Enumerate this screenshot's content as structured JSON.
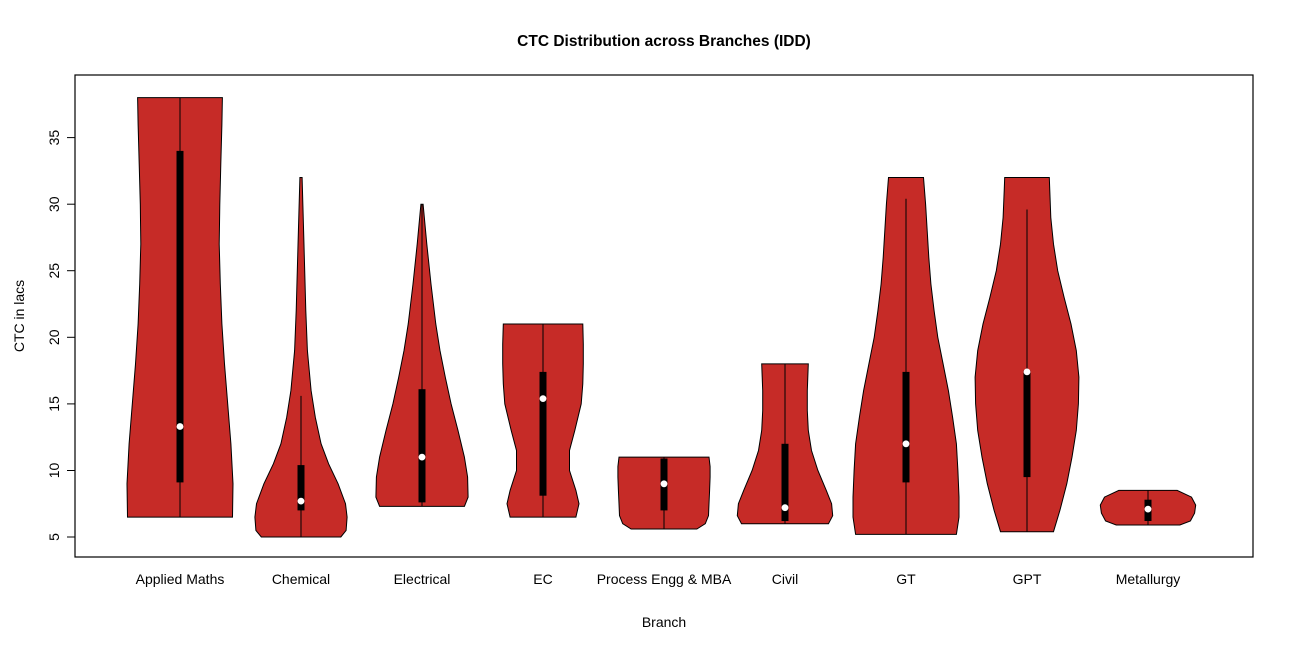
{
  "chart_data": {
    "type": "violin",
    "title": "CTC Distribution across Branches (IDD)",
    "xlabel": "Branch",
    "ylabel": "CTC in lacs",
    "ylim": [
      3.5,
      39.7
    ],
    "yticks": [
      5,
      10,
      15,
      20,
      25,
      30,
      35
    ],
    "grid": false,
    "legend": "none",
    "fill_color": "#C62B27",
    "outline_color": "#000000",
    "box_color": "#000000",
    "median_dot_color": "#ffffff",
    "categories": [
      "Applied Maths",
      "Chemical",
      "Electrical",
      "EC",
      "Process Engg & MBA",
      "Civil",
      "GT",
      "GPT",
      "Metallurgy"
    ],
    "violins": [
      {
        "name": "Applied Maths",
        "median": 13.3,
        "q1": 9.1,
        "q3": 34.0,
        "whisker": [
          6.5,
          38.0
        ],
        "density": [
          [
            6.5,
            0.99
          ],
          [
            9,
            1.0
          ],
          [
            12,
            0.96
          ],
          [
            15,
            0.9
          ],
          [
            18,
            0.84
          ],
          [
            21,
            0.79
          ],
          [
            24,
            0.76
          ],
          [
            27,
            0.74
          ],
          [
            30,
            0.75
          ],
          [
            33,
            0.77
          ],
          [
            36,
            0.79
          ],
          [
            38,
            0.8
          ]
        ]
      },
      {
        "name": "Chemical",
        "median": 7.7,
        "q1": 7.0,
        "q3": 10.4,
        "whisker": [
          5.0,
          15.6
        ],
        "density": [
          [
            5.0,
            0.75
          ],
          [
            5.5,
            0.85
          ],
          [
            6.5,
            0.87
          ],
          [
            7.5,
            0.84
          ],
          [
            9,
            0.7
          ],
          [
            10.5,
            0.52
          ],
          [
            12,
            0.38
          ],
          [
            14,
            0.27
          ],
          [
            16,
            0.19
          ],
          [
            19,
            0.12
          ],
          [
            22,
            0.09
          ],
          [
            25,
            0.07
          ],
          [
            28,
            0.05
          ],
          [
            32,
            0.02
          ]
        ]
      },
      {
        "name": "Electrical",
        "median": 11.0,
        "q1": 7.6,
        "q3": 16.1,
        "whisker": [
          7.3,
          30.0
        ],
        "density": [
          [
            7.3,
            0.8
          ],
          [
            8,
            0.87
          ],
          [
            9.5,
            0.86
          ],
          [
            11,
            0.8
          ],
          [
            13,
            0.68
          ],
          [
            15,
            0.55
          ],
          [
            17,
            0.44
          ],
          [
            19,
            0.34
          ],
          [
            21,
            0.26
          ],
          [
            24,
            0.17
          ],
          [
            27,
            0.09
          ],
          [
            30,
            0.02
          ]
        ]
      },
      {
        "name": "EC",
        "median": 15.4,
        "q1": 8.1,
        "q3": 17.4,
        "whisker": [
          6.5,
          21.0
        ],
        "density": [
          [
            6.5,
            0.62
          ],
          [
            7.5,
            0.68
          ],
          [
            8.5,
            0.62
          ],
          [
            10,
            0.5
          ],
          [
            11.5,
            0.5
          ],
          [
            13,
            0.6
          ],
          [
            15,
            0.72
          ],
          [
            16.5,
            0.75
          ],
          [
            18,
            0.76
          ],
          [
            19.5,
            0.76
          ],
          [
            21,
            0.75
          ]
        ]
      },
      {
        "name": "Process Engg & MBA",
        "median": 9.0,
        "q1": 7.0,
        "q3": 10.9,
        "whisker": [
          5.6,
          11.0
        ],
        "density": [
          [
            5.6,
            0.62
          ],
          [
            6.0,
            0.78
          ],
          [
            6.6,
            0.84
          ],
          [
            7.5,
            0.85
          ],
          [
            8.5,
            0.86
          ],
          [
            9.5,
            0.87
          ],
          [
            10.3,
            0.87
          ],
          [
            11,
            0.85
          ]
        ]
      },
      {
        "name": "Civil",
        "median": 7.2,
        "q1": 6.2,
        "q3": 12.0,
        "whisker": [
          6.0,
          18.0
        ],
        "density": [
          [
            6.0,
            0.82
          ],
          [
            6.6,
            0.9
          ],
          [
            7.5,
            0.88
          ],
          [
            8.5,
            0.78
          ],
          [
            10,
            0.62
          ],
          [
            11.5,
            0.5
          ],
          [
            13,
            0.44
          ],
          [
            14.5,
            0.42
          ],
          [
            16,
            0.42
          ],
          [
            17,
            0.43
          ],
          [
            18,
            0.44
          ]
        ]
      },
      {
        "name": "GT",
        "median": 12.0,
        "q1": 9.1,
        "q3": 17.4,
        "whisker": [
          5.2,
          30.4
        ],
        "density": [
          [
            5.2,
            0.95
          ],
          [
            6.5,
            1.0
          ],
          [
            8,
            1.0
          ],
          [
            10,
            0.98
          ],
          [
            12,
            0.95
          ],
          [
            14,
            0.88
          ],
          [
            16,
            0.8
          ],
          [
            18,
            0.7
          ],
          [
            20,
            0.6
          ],
          [
            22,
            0.53
          ],
          [
            24,
            0.47
          ],
          [
            26,
            0.43
          ],
          [
            28,
            0.4
          ],
          [
            30,
            0.37
          ],
          [
            32,
            0.33
          ]
        ]
      },
      {
        "name": "GPT",
        "median": 17.4,
        "q1": 9.5,
        "q3": 17.5,
        "whisker": [
          5.4,
          29.6
        ],
        "density": [
          [
            5.4,
            0.5
          ],
          [
            7,
            0.62
          ],
          [
            9,
            0.75
          ],
          [
            11,
            0.85
          ],
          [
            13,
            0.93
          ],
          [
            15,
            0.97
          ],
          [
            17,
            0.98
          ],
          [
            19,
            0.93
          ],
          [
            21,
            0.83
          ],
          [
            23,
            0.7
          ],
          [
            25,
            0.58
          ],
          [
            27,
            0.5
          ],
          [
            29,
            0.45
          ],
          [
            31,
            0.43
          ],
          [
            32,
            0.42
          ]
        ]
      },
      {
        "name": "Metallurgy",
        "median": 7.1,
        "q1": 6.2,
        "q3": 7.8,
        "whisker": [
          5.9,
          8.5
        ],
        "density": [
          [
            5.9,
            0.6
          ],
          [
            6.2,
            0.8
          ],
          [
            6.8,
            0.88
          ],
          [
            7.4,
            0.9
          ],
          [
            8.0,
            0.82
          ],
          [
            8.5,
            0.55
          ]
        ]
      }
    ]
  }
}
